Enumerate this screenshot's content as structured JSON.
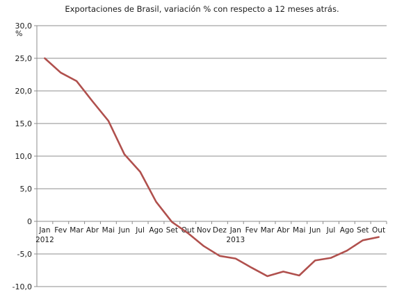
{
  "chart_data": {
    "type": "line",
    "title": "Exportaciones de Brasil, variación % con respecto a 12 meses atrás.",
    "ylabel": "%",
    "xlabel": "",
    "ylim": [
      -10,
      30
    ],
    "yticks": [
      30,
      25,
      20,
      15,
      10,
      5,
      0,
      -5,
      -10
    ],
    "ytick_labels": [
      "30,0",
      "25,0",
      "20,0",
      "15,0",
      "10,0",
      "5,0",
      "0",
      "-5,0",
      "-10,0"
    ],
    "grid": true,
    "categories": [
      "Jan",
      "Fev",
      "Mar",
      "Abr",
      "Mai",
      "Jun",
      "Jul",
      "Ago",
      "Set",
      "Out",
      "Nov",
      "Dez",
      "Jan",
      "Fev",
      "Mar",
      "Abr",
      "Mai",
      "Jun",
      "Jul",
      "Ago",
      "Set",
      "Out"
    ],
    "year_labels": [
      {
        "label": "2012",
        "category_index": 0
      },
      {
        "label": "2013",
        "category_index": 12
      }
    ],
    "series": [
      {
        "color": "#b0504d",
        "values": [
          25.0,
          22.8,
          21.5,
          18.4,
          15.4,
          10.3,
          7.6,
          3.0,
          -0.1,
          -1.8,
          -3.8,
          -5.3,
          -5.7,
          -7.1,
          -8.4,
          -7.7,
          -8.3,
          -6.0,
          -5.6,
          -4.5,
          -2.9,
          -2.4
        ]
      }
    ]
  }
}
